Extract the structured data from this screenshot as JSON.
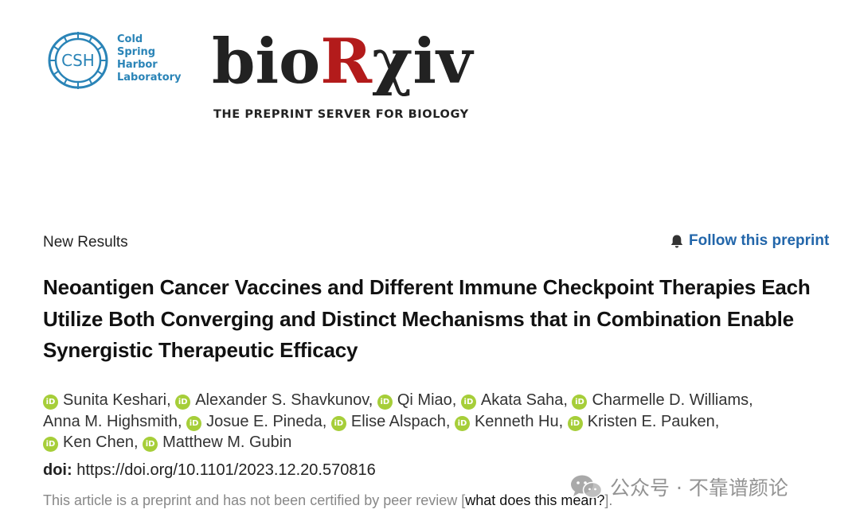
{
  "header": {
    "csh_logo": {
      "badge": "CSH",
      "lines": [
        "Cold",
        "Spring",
        "Harbor",
        "Laboratory"
      ],
      "color": "#2a84b7"
    },
    "biorxiv_logo": {
      "wordmark_left": "bio",
      "wordmark_accent": "R",
      "wordmark_chi": "χ",
      "wordmark_right": "iv",
      "tagline": "THE PREPRINT SERVER FOR BIOLOGY",
      "accent_color": "#b31b1b"
    }
  },
  "article": {
    "section": "New Results",
    "follow_label": "Follow this preprint",
    "title": "Neoantigen Cancer Vaccines and Different Immune Checkpoint Therapies Each Utilize Both Converging and Distinct Mechanisms that in Combination Enable Synergistic Therapeutic Efficacy",
    "orcid_glyph": "iD",
    "authors": [
      "Sunita Keshari,",
      "Alexander S. Shavkunov,",
      "Qi Miao,",
      "Akata Saha,",
      "Charmelle D. Williams,",
      "Anna M. Highsmith,",
      "Josue E. Pineda,",
      "Elise Alspach,",
      "Kenneth Hu,",
      "Kristen E. Pauken,",
      "Ken Chen,",
      "Matthew M. Gubin"
    ],
    "doi_label": "doi:",
    "doi_url": "https://doi.org/10.1101/2023.12.20.570816",
    "disclaimer_prefix": "This article is a preprint and has not been certified by peer review [",
    "disclaimer_link": "what does this mean?",
    "disclaimer_suffix": "]."
  },
  "watermark": {
    "text": "公众号 · 不靠谱颜论",
    "icon": "wechat-icon"
  }
}
